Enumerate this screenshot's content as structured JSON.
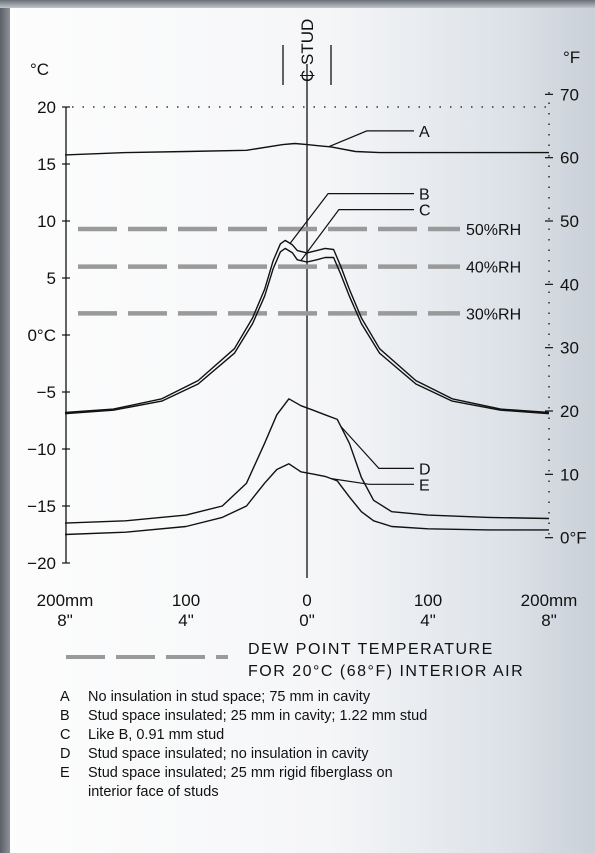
{
  "chart_data": {
    "type": "line",
    "title": "",
    "xlabel": "",
    "ylabel_left": "°C",
    "ylabel_right": "°F",
    "xlim": [
      -200,
      200
    ],
    "ylim": [
      -20,
      20
    ],
    "grid": false,
    "stud_label": "₵ STUD",
    "y_ticks_left": [
      {
        "value": 20,
        "label": "20"
      },
      {
        "value": 15,
        "label": "15"
      },
      {
        "value": 10,
        "label": "10"
      },
      {
        "value": 5,
        "label": "5"
      },
      {
        "value": 0,
        "label": "0°C"
      },
      {
        "value": -5,
        "label": "−5"
      },
      {
        "value": -10,
        "label": "−10"
      },
      {
        "value": -15,
        "label": "−15"
      },
      {
        "value": -20,
        "label": "−20"
      }
    ],
    "y_ticks_right": [
      {
        "value": 70,
        "label": "70"
      },
      {
        "value": 60,
        "label": "60"
      },
      {
        "value": 50,
        "label": "50"
      },
      {
        "value": 40,
        "label": "40"
      },
      {
        "value": 30,
        "label": "30"
      },
      {
        "value": 20,
        "label": "20"
      },
      {
        "value": 10,
        "label": "10"
      },
      {
        "value": 0,
        "label": "0°F"
      }
    ],
    "x_ticks": [
      {
        "value": -200,
        "label_mm": "200mm",
        "label_in": "8\""
      },
      {
        "value": -100,
        "label_mm": "100",
        "label_in": "4\""
      },
      {
        "value": 0,
        "label_mm": "0",
        "label_in": "0\""
      },
      {
        "value": 100,
        "label_mm": "100",
        "label_in": "4\""
      },
      {
        "value": 200,
        "label_mm": "200mm",
        "label_in": "8\""
      }
    ],
    "dew_points": [
      {
        "label": "50%RH",
        "value": 9.3
      },
      {
        "label": "40%RH",
        "value": 6.0
      },
      {
        "label": "30%RH",
        "value": 1.9
      }
    ],
    "series": [
      {
        "name": "A",
        "x": [
          -200,
          -150,
          -100,
          -50,
          -20,
          -10,
          0,
          10,
          20,
          40,
          60,
          100,
          150,
          200
        ],
        "y": [
          15.8,
          16.0,
          16.1,
          16.2,
          16.7,
          16.8,
          16.7,
          16.6,
          16.5,
          16.1,
          16.0,
          16.0,
          16.0,
          16.0
        ]
      },
      {
        "name": "B",
        "x": [
          -200,
          -160,
          -120,
          -90,
          -60,
          -45,
          -35,
          -28,
          -22,
          -18,
          -12,
          -8,
          0,
          8,
          15,
          22,
          28,
          35,
          45,
          60,
          90,
          120,
          160,
          200
        ],
        "y": [
          -6.8,
          -6.5,
          -5.6,
          -4.0,
          -1.2,
          1.5,
          4.0,
          6.5,
          8.0,
          8.3,
          7.9,
          7.4,
          7.2,
          7.4,
          7.6,
          7.5,
          6.0,
          4.0,
          1.5,
          -1.2,
          -4.0,
          -5.6,
          -6.5,
          -6.8
        ]
      },
      {
        "name": "C",
        "x": [
          -200,
          -160,
          -120,
          -90,
          -60,
          -45,
          -35,
          -28,
          -22,
          -18,
          -12,
          -8,
          0,
          8,
          15,
          22,
          28,
          35,
          45,
          60,
          90,
          120,
          160,
          200
        ],
        "y": [
          -6.9,
          -6.6,
          -5.8,
          -4.3,
          -1.6,
          1.0,
          3.4,
          5.8,
          7.3,
          7.6,
          7.2,
          6.6,
          6.4,
          6.6,
          6.8,
          6.8,
          5.3,
          3.4,
          1.0,
          -1.6,
          -4.3,
          -5.8,
          -6.6,
          -6.9
        ]
      },
      {
        "name": "D",
        "x": [
          -200,
          -150,
          -100,
          -70,
          -50,
          -35,
          -25,
          -15,
          -5,
          5,
          15,
          25,
          35,
          45,
          55,
          70,
          100,
          150,
          200
        ],
        "y": [
          -16.5,
          -16.3,
          -15.8,
          -15.0,
          -13.0,
          -9.5,
          -7.0,
          -5.6,
          -6.2,
          -6.6,
          -7.0,
          -7.4,
          -9.5,
          -12.5,
          -14.5,
          -15.5,
          -15.8,
          -16.0,
          -16.1
        ]
      },
      {
        "name": "E",
        "x": [
          -200,
          -150,
          -100,
          -70,
          -50,
          -35,
          -25,
          -15,
          -5,
          5,
          15,
          25,
          35,
          45,
          55,
          70,
          100,
          150,
          200
        ],
        "y": [
          -17.5,
          -17.3,
          -16.8,
          -16.0,
          -15.0,
          -13.0,
          -11.8,
          -11.3,
          -12.0,
          -12.2,
          -12.4,
          -12.8,
          -14.2,
          -15.5,
          -16.3,
          -16.8,
          -17.0,
          -17.1,
          -17.1
        ]
      }
    ],
    "labels": [
      {
        "text": "A",
        "series": "A",
        "at_x": 18,
        "label_y": 17.9
      },
      {
        "text": "B",
        "series": "B",
        "at_x": -14,
        "label_y": 12.4
      },
      {
        "text": "C",
        "series": "C",
        "at_x": -5,
        "label_y": 11.0
      },
      {
        "text": "D",
        "series": "D",
        "at_x": 28,
        "label_y": -11.7
      },
      {
        "text": "E",
        "series": "E",
        "at_x": 20,
        "label_y": -13.1
      }
    ],
    "legend": {
      "line1": "DEW POINT TEMPERATURE",
      "line2": "FOR 20°C (68°F) INTERIOR AIR"
    }
  },
  "key": [
    {
      "letter": "A",
      "text": "No insulation in stud space; 75 mm in cavity"
    },
    {
      "letter": "B",
      "text": "Stud space insulated; 25 mm in cavity; 1.22 mm stud"
    },
    {
      "letter": "C",
      "text": "Like B, 0.91 mm stud"
    },
    {
      "letter": "D",
      "text": "Stud space insulated; no insulation in cavity"
    },
    {
      "letter": "E",
      "text": "Stud space insulated; 25 mm rigid fiberglass on"
    },
    {
      "letter": "",
      "text": "interior face of studs"
    }
  ],
  "colors": {
    "line": "#111111",
    "dew_dash": "#9a9a9a"
  }
}
